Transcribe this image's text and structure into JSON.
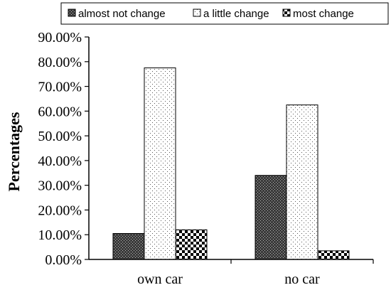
{
  "chart_data": {
    "type": "bar",
    "ylabel": "Percentages",
    "xlabel": "",
    "categories": [
      "own car",
      "no car"
    ],
    "series": [
      {
        "name": "almost not change",
        "values": [
          10.5,
          34.0
        ],
        "pattern": "dense-dark"
      },
      {
        "name": "a little change",
        "values": [
          77.5,
          62.5
        ],
        "pattern": "sparse-dots"
      },
      {
        "name": "most change",
        "values": [
          12.0,
          3.5
        ],
        "pattern": "checker"
      }
    ],
    "ylim": [
      0,
      90
    ],
    "yticks": [
      "0.00%",
      "10.00%",
      "20.00%",
      "30.00%",
      "40.00%",
      "50.00%",
      "60.00%",
      "70.00%",
      "80.00%",
      "90.00%"
    ],
    "grid": false,
    "legend": "top"
  }
}
